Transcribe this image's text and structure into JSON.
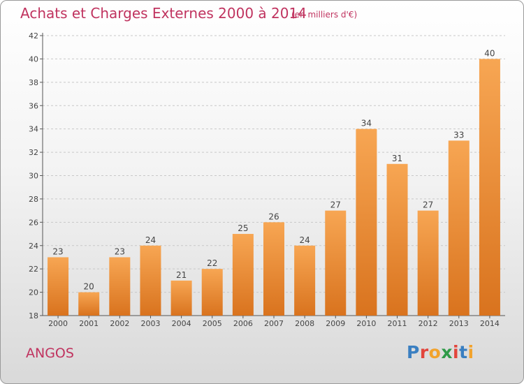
{
  "header": {
    "title": "Achats et Charges Externes 2000 à 2014",
    "subtitle": "(en milliers d'€)"
  },
  "footer": {
    "commune": "ANGOS",
    "logo_text": "Proxiti"
  },
  "colors": {
    "title": "#c0335f",
    "bar_light": "#f7a653",
    "bar_dark": "#d9731e",
    "logo_letters": [
      "#3a7fc1",
      "#e2453c",
      "#f2a32c",
      "#2f9a48",
      "#e2453c",
      "#3a7fc1",
      "#f2a32c"
    ]
  },
  "chart_data": {
    "type": "bar",
    "categories": [
      "2000",
      "2001",
      "2002",
      "2003",
      "2004",
      "2005",
      "2006",
      "2007",
      "2008",
      "2009",
      "2010",
      "2011",
      "2012",
      "2013",
      "2014"
    ],
    "values": [
      23,
      20,
      23,
      24,
      21,
      22,
      25,
      26,
      24,
      27,
      34,
      31,
      27,
      33,
      40
    ],
    "ylim": [
      18,
      42
    ],
    "yticks": [
      18,
      20,
      22,
      24,
      26,
      28,
      30,
      32,
      34,
      36,
      38,
      40,
      42
    ],
    "grid": true
  }
}
